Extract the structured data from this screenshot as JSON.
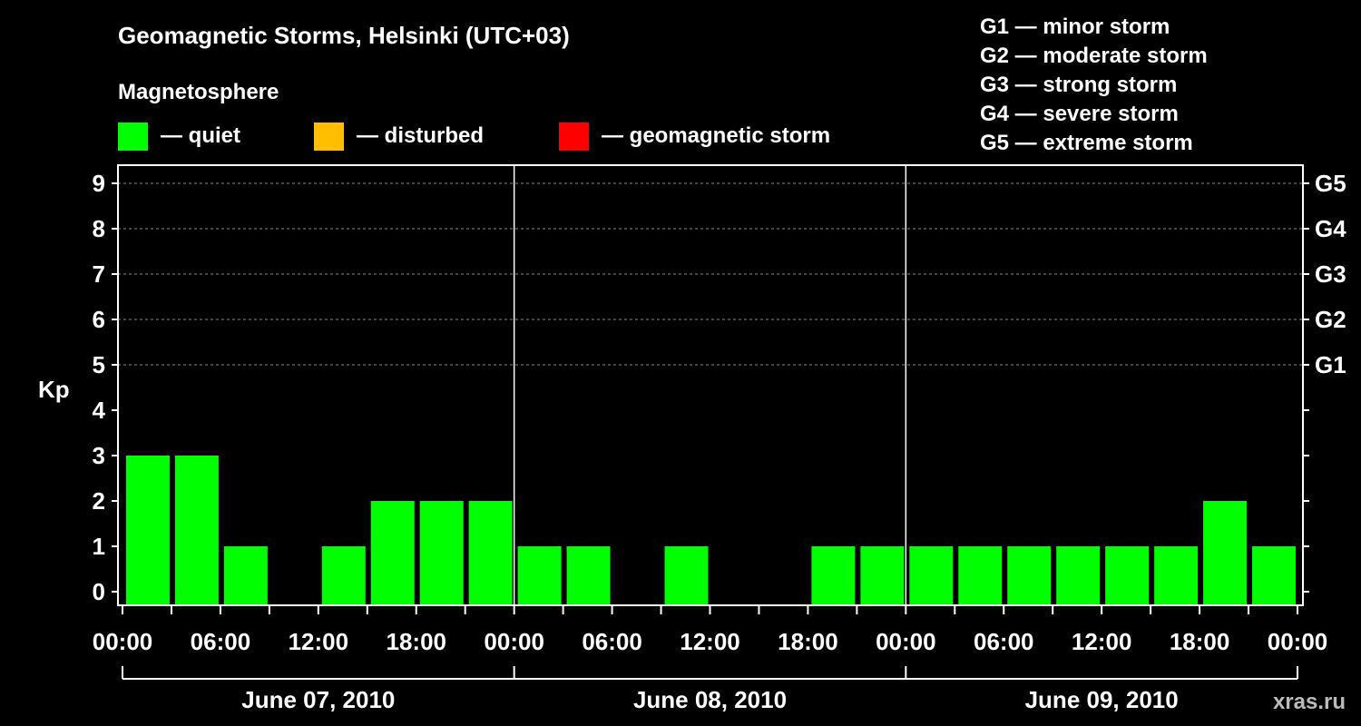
{
  "title": "Geomagnetic Storms, Helsinki (UTC+03)",
  "legend": {
    "heading": "Magnetosphere",
    "items": [
      {
        "label": "— quiet",
        "color": "#00ff00"
      },
      {
        "label": "— disturbed",
        "color": "#ffbf00"
      },
      {
        "label": "— geomagnetic storm",
        "color": "#ff0000"
      }
    ]
  },
  "storm_scale": [
    "G1 — minor storm",
    "G2 — moderate storm",
    "G3 — strong storm",
    "G4 — severe storm",
    "G5 — extreme storm"
  ],
  "watermark": "xras.ru",
  "chart_data": {
    "type": "bar",
    "ylabel": "Kp",
    "ylim": [
      0,
      9
    ],
    "y_ticks": [
      "0",
      "1",
      "2",
      "3",
      "4",
      "5",
      "6",
      "7",
      "8",
      "9"
    ],
    "right_ticks": [
      {
        "value": 5,
        "label": "G1"
      },
      {
        "value": 6,
        "label": "G2"
      },
      {
        "value": 7,
        "label": "G3"
      },
      {
        "value": 8,
        "label": "G4"
      },
      {
        "value": 9,
        "label": "G5"
      }
    ],
    "x_tick_labels": [
      "00:00",
      "06:00",
      "12:00",
      "18:00",
      "00:00",
      "06:00",
      "12:00",
      "18:00",
      "00:00",
      "06:00",
      "12:00",
      "18:00",
      "00:00"
    ],
    "days": [
      "June 07, 2010",
      "June 08, 2010",
      "June 09, 2010"
    ],
    "interval_hours": 3,
    "bar_color": "#00ff00",
    "values": [
      3,
      3,
      1,
      0,
      1,
      2,
      2,
      2,
      1,
      1,
      0,
      1,
      0,
      0,
      1,
      1,
      1,
      1,
      1,
      1,
      1,
      1,
      2,
      1
    ],
    "grid": true
  }
}
